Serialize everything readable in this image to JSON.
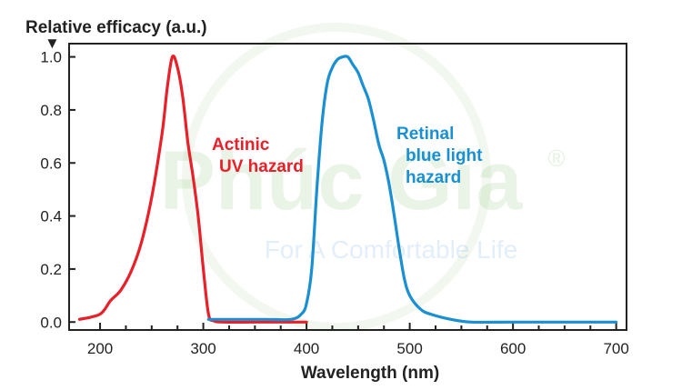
{
  "watermark": {
    "brand": "Phúc Gia",
    "tagline": "For A Comfortable Life",
    "registered": "®"
  },
  "chart_data": {
    "type": "line",
    "title": "",
    "ylabel": "Relative efficacy (a.u.)",
    "ylabel_marker": "▼",
    "xlabel": "Wavelength (nm)",
    "xlim": [
      170,
      710
    ],
    "ylim": [
      -0.03,
      1.05
    ],
    "xticks": [
      200,
      300,
      400,
      500,
      600,
      700
    ],
    "xtick_labels": [
      "200",
      "300",
      "400",
      "500",
      "600",
      "700"
    ],
    "yticks": [
      0.0,
      0.2,
      0.4,
      0.6,
      0.8,
      1.0
    ],
    "ytick_labels": [
      "0.0",
      "0.2",
      "0.4",
      "0.6",
      "0.8",
      "1.0"
    ],
    "grid": false,
    "series": [
      {
        "name": "Actinic UV hazard",
        "label_lines": [
          "Actinic",
          "UV hazard"
        ],
        "color": "#e8202a",
        "x": [
          180,
          200,
          210,
          220,
          230,
          240,
          250,
          260,
          265,
          270,
          275,
          280,
          285,
          290,
          295,
          300,
          305,
          310,
          320,
          350,
          400
        ],
        "y": [
          0.01,
          0.03,
          0.08,
          0.12,
          0.19,
          0.3,
          0.47,
          0.71,
          0.88,
          1.0,
          0.96,
          0.85,
          0.68,
          0.55,
          0.4,
          0.2,
          0.03,
          0.005,
          0.0,
          0.0,
          0.0
        ]
      },
      {
        "name": "Retinal blue light hazard",
        "label_lines": [
          "Retinal",
          "blue light",
          "hazard"
        ],
        "color": "#1a8fd2",
        "x": [
          305,
          330,
          360,
          385,
          395,
          400,
          405,
          410,
          415,
          420,
          425,
          430,
          435,
          440,
          445,
          450,
          455,
          460,
          465,
          470,
          475,
          480,
          485,
          490,
          495,
          500,
          510,
          520,
          540,
          560,
          600,
          650,
          700
        ],
        "y": [
          0.01,
          0.01,
          0.01,
          0.01,
          0.03,
          0.07,
          0.2,
          0.5,
          0.75,
          0.9,
          0.96,
          0.99,
          1.0,
          1.0,
          0.97,
          0.94,
          0.89,
          0.84,
          0.76,
          0.67,
          0.61,
          0.52,
          0.4,
          0.27,
          0.16,
          0.1,
          0.05,
          0.03,
          0.01,
          0.0,
          0.0,
          0.0,
          0.0
        ]
      }
    ]
  }
}
